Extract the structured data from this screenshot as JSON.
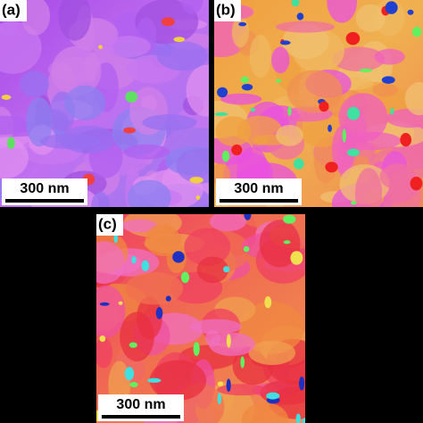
{
  "panels": [
    {
      "label": "(a)",
      "scale_bar": "300 nm"
    },
    {
      "label": "(b)",
      "scale_bar": "300 nm"
    },
    {
      "label": "(c)",
      "scale_bar": "300 nm"
    }
  ]
}
